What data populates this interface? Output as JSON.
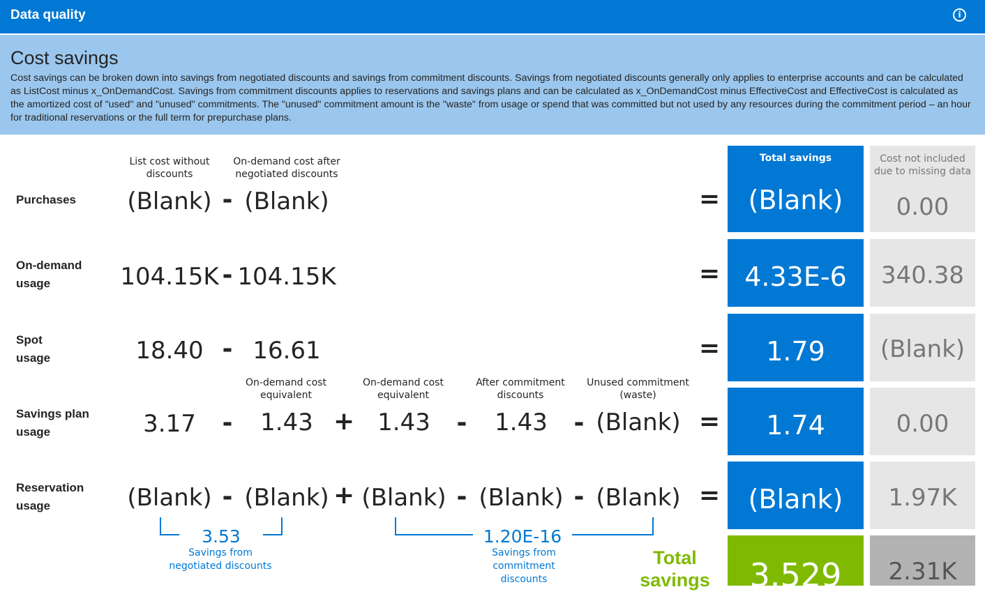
{
  "header": {
    "title": "Data quality",
    "info_icon": "info-icon"
  },
  "description": {
    "heading": "Cost savings",
    "text": "Cost savings can be broken down into savings from negotiated discounts and savings from commitment discounts. Savings from negotiated discounts generally only applies to enterprise accounts and can be calculated as ListCost minus x_OnDemandCost. Savings from commitment discounts applies to reservations and savings plans and can be calculated as x_OnDemandCost minus EffectiveCost and EffectiveCost is calculated as the amortized cost of \"used\" and \"unused\" commitments. The \"unused\" commitment amount is the \"waste\" from usage or spend that was committed but not used by any resources during the commitment period – an hour for traditional reservations or the full term for prepurchase plans."
  },
  "column_headers": {
    "list_cost": "List cost without discounts",
    "on_demand_after": "On-demand cost after negotiated discounts",
    "on_demand_equiv_1": "On-demand cost equivalent",
    "on_demand_equiv_2": "On-demand cost equivalent",
    "after_commitment": "After commitment discounts",
    "unused_commitment": "Unused commitment (waste)",
    "total_savings": "Total savings",
    "cost_not_included": "Cost not included due to missing data"
  },
  "operators": {
    "minus": "-",
    "plus": "+",
    "equals": "="
  },
  "rows": [
    {
      "label": "Purchases",
      "v1": "(Blank)",
      "v2": "(Blank)",
      "total": "(Blank)",
      "missing": "0.00"
    },
    {
      "label": "On-demand usage",
      "v1": "104.15K",
      "v2": "104.15K",
      "total": "4.33E-6",
      "missing": "340.38"
    },
    {
      "label": "Spot usage",
      "v1": "18.40",
      "v2": "16.61",
      "total": "1.79",
      "missing": "(Blank)"
    },
    {
      "label": "Savings plan usage",
      "v1": "3.17",
      "v2": "1.43",
      "v3": "1.43",
      "v4": "1.43",
      "v5": "(Blank)",
      "total": "1.74",
      "missing": "0.00"
    },
    {
      "label": "Reservation usage",
      "v1": "(Blank)",
      "v2": "(Blank)",
      "v3": "(Blank)",
      "v4": "(Blank)",
      "v5": "(Blank)",
      "total": "(Blank)",
      "missing": "1.97K"
    }
  ],
  "summary": {
    "negotiated_value": "3.53",
    "negotiated_label": "Savings from negotiated discounts",
    "commitment_value": "1.20E-16",
    "commitment_label": "Savings from commitment discounts",
    "total_label": "Total savings",
    "total_value": "3.529",
    "total_missing": "2.31K"
  },
  "colors": {
    "brand_blue": "#0078d4",
    "light_blue": "#9bc7ee",
    "green": "#7fba00",
    "gray_tile": "#e6e6e6"
  }
}
